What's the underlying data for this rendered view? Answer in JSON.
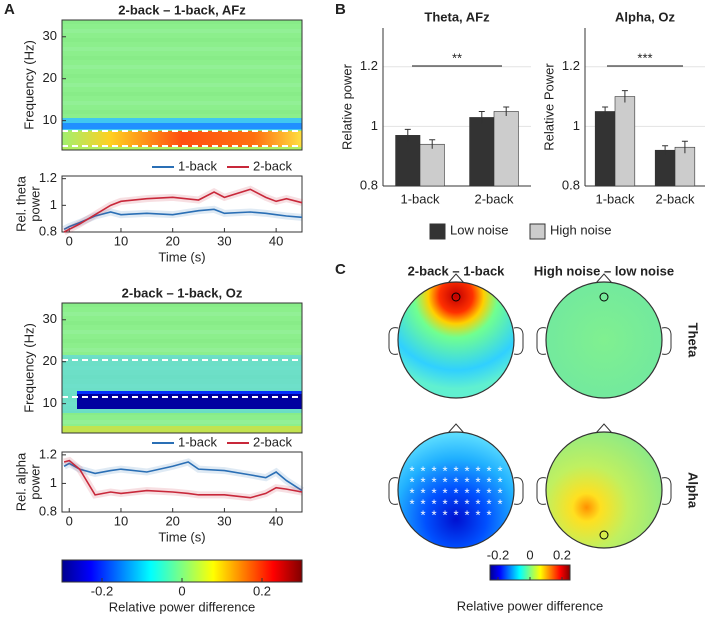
{
  "panels": [
    "A",
    "B",
    "C"
  ],
  "chart_data": [
    {
      "type": "heatmap",
      "title": "2-back – 1-back, AFz",
      "y_label": "Frequency (Hz)",
      "ylim": [
        3,
        34
      ],
      "yticks": [
        10,
        20,
        30
      ]
    },
    {
      "type": "line",
      "x_label": "Time (s)",
      "y_label": [
        "Rel. theta",
        "power"
      ],
      "xlim": [
        -1.4,
        45
      ],
      "xticks": [
        0,
        10,
        20,
        30,
        40
      ],
      "ylim": [
        0.8,
        1.22
      ],
      "yticks": [
        0.8,
        1,
        1.2
      ],
      "x": [
        -1,
        0,
        2,
        5,
        8,
        10,
        15,
        20,
        25,
        28,
        30,
        35,
        38,
        40,
        42,
        45
      ],
      "series": [
        {
          "name": "1-back",
          "color": "#2a6fb5",
          "values": [
            0.82,
            0.84,
            0.87,
            0.92,
            0.95,
            0.93,
            0.94,
            0.93,
            0.96,
            0.97,
            0.94,
            0.95,
            0.94,
            0.93,
            0.92,
            0.91
          ]
        },
        {
          "name": "2-back",
          "color": "#c8283a",
          "values": [
            0.8,
            0.82,
            0.86,
            0.93,
            1.0,
            1.03,
            1.05,
            1.06,
            1.04,
            1.1,
            1.06,
            1.12,
            1.06,
            1.03,
            1.05,
            1.02
          ]
        }
      ]
    },
    {
      "type": "heatmap",
      "title": "2-back – 1-back, Oz",
      "y_label": "Frequency (Hz)",
      "ylim": [
        3,
        34
      ],
      "yticks": [
        10,
        20,
        30
      ]
    },
    {
      "type": "line",
      "x_label": "Time (s)",
      "y_label": [
        "Rel. alpha",
        "power"
      ],
      "xlim": [
        -1.4,
        45
      ],
      "xticks": [
        0,
        10,
        20,
        30,
        40
      ],
      "ylim": [
        0.8,
        1.22
      ],
      "yticks": [
        0.8,
        1,
        1.2
      ],
      "x": [
        -1,
        0,
        2,
        5,
        8,
        10,
        15,
        20,
        23,
        25,
        30,
        35,
        38,
        40,
        42,
        45
      ],
      "series": [
        {
          "name": "1-back",
          "color": "#2a6fb5",
          "values": [
            1.12,
            1.14,
            1.1,
            1.07,
            1.09,
            1.1,
            1.08,
            1.12,
            1.15,
            1.1,
            1.09,
            1.06,
            1.04,
            1.08,
            1.02,
            0.95
          ]
        },
        {
          "name": "2-back",
          "color": "#c8283a",
          "values": [
            1.15,
            1.16,
            1.1,
            0.92,
            0.94,
            0.93,
            0.95,
            0.94,
            0.93,
            0.92,
            0.92,
            0.9,
            0.93,
            0.97,
            0.96,
            0.94
          ]
        }
      ]
    },
    {
      "type": "colorbar",
      "x_label": "Relative power difference",
      "xlim": [
        -0.3,
        0.3
      ],
      "xticks": [
        -0.2,
        0,
        0.2
      ]
    },
    {
      "type": "bar",
      "title": "Theta, AFz",
      "y_label": "Relative power",
      "annotation": "**",
      "categories": [
        "1-back",
        "2-back"
      ],
      "ylim": [
        0.8,
        1.33
      ],
      "yticks": [
        0.8,
        1,
        1.2
      ],
      "series": [
        {
          "name": "Low noise",
          "color": "#333333",
          "values": [
            0.97,
            1.03
          ],
          "errors": [
            0.02,
            0.02
          ]
        },
        {
          "name": "High noise",
          "color": "#cccccc",
          "values": [
            0.94,
            1.05
          ],
          "errors": [
            0.015,
            0.015
          ]
        }
      ]
    },
    {
      "type": "bar",
      "title": "Alpha, Oz",
      "y_label": "Relative Power",
      "annotation": "***",
      "categories": [
        "1-back",
        "2-back"
      ],
      "ylim": [
        0.8,
        1.33
      ],
      "yticks": [
        0.8,
        1,
        1.2
      ],
      "series": [
        {
          "color": "#333333",
          "values": [
            1.05,
            0.92
          ],
          "errors": [
            0.015,
            0.015
          ]
        },
        {
          "color": "#cccccc",
          "values": [
            1.1,
            0.93
          ],
          "errors": [
            0.02,
            0.02
          ]
        }
      ]
    },
    {
      "type": "topoplot",
      "columns": [
        "2-back – 1-back",
        "High noise – low noise"
      ],
      "rows": [
        "Theta",
        "Alpha"
      ],
      "x_label": "Relative power difference",
      "xlim": [
        -0.25,
        0.25
      ],
      "xticks": [
        -0.2,
        0,
        0.2
      ]
    }
  ]
}
